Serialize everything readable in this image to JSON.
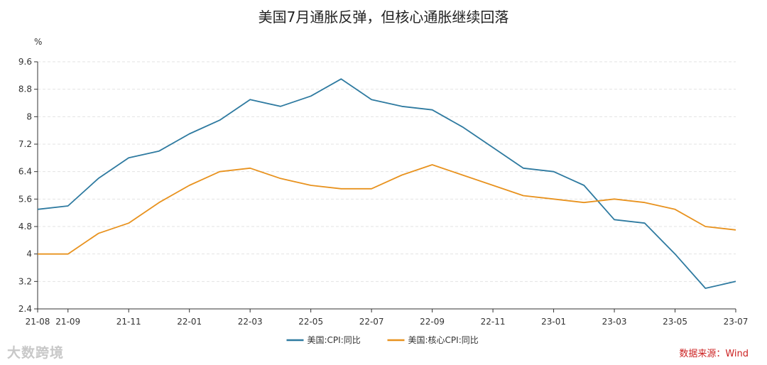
{
  "chart_data": {
    "type": "line",
    "title": "美国7月通胀反弹，但核心通胀继续回落",
    "ylabel": "%",
    "ylim": [
      2.4,
      9.6
    ],
    "yticks": [
      "9.6",
      "8.8",
      "8",
      "7.2",
      "6.4",
      "5.6",
      "4.8",
      "4",
      "3.2",
      "2.4"
    ],
    "ytick_values": [
      9.6,
      8.8,
      8.0,
      7.2,
      6.4,
      5.6,
      4.8,
      4.0,
      3.2,
      2.4
    ],
    "x": [
      "21-08",
      "21-09",
      "21-10",
      "21-11",
      "21-12",
      "22-01",
      "22-02",
      "22-03",
      "22-04",
      "22-05",
      "22-06",
      "22-07",
      "22-08",
      "22-09",
      "22-10",
      "22-11",
      "22-12",
      "23-01",
      "23-02",
      "23-03",
      "23-04",
      "23-05",
      "23-06",
      "23-07"
    ],
    "xtick_labels": [
      "21-08",
      "21-09",
      "21-11",
      "22-01",
      "22-03",
      "22-05",
      "22-07",
      "22-09",
      "22-11",
      "23-01",
      "23-03",
      "23-05",
      "23-07"
    ],
    "grid": true,
    "legend_position": "bottom",
    "series": [
      {
        "name": "美国:CPI:同比",
        "color": "#2e7aa0",
        "values": [
          5.3,
          5.4,
          6.2,
          6.8,
          7.0,
          7.5,
          7.9,
          8.5,
          8.3,
          8.6,
          9.1,
          8.5,
          8.3,
          8.2,
          7.7,
          7.1,
          6.5,
          6.4,
          6.0,
          5.0,
          4.9,
          4.0,
          3.0,
          3.2
        ]
      },
      {
        "name": "美国:核心CPI:同比",
        "color": "#e8921e",
        "values": [
          4.0,
          4.0,
          4.6,
          4.9,
          5.5,
          6.0,
          6.4,
          6.5,
          6.2,
          6.0,
          5.9,
          5.9,
          6.3,
          6.6,
          6.3,
          6.0,
          5.7,
          5.6,
          5.5,
          5.6,
          5.5,
          5.3,
          4.8,
          4.7
        ]
      }
    ],
    "source": "数据来源：Wind",
    "watermark": "大数跨境"
  }
}
